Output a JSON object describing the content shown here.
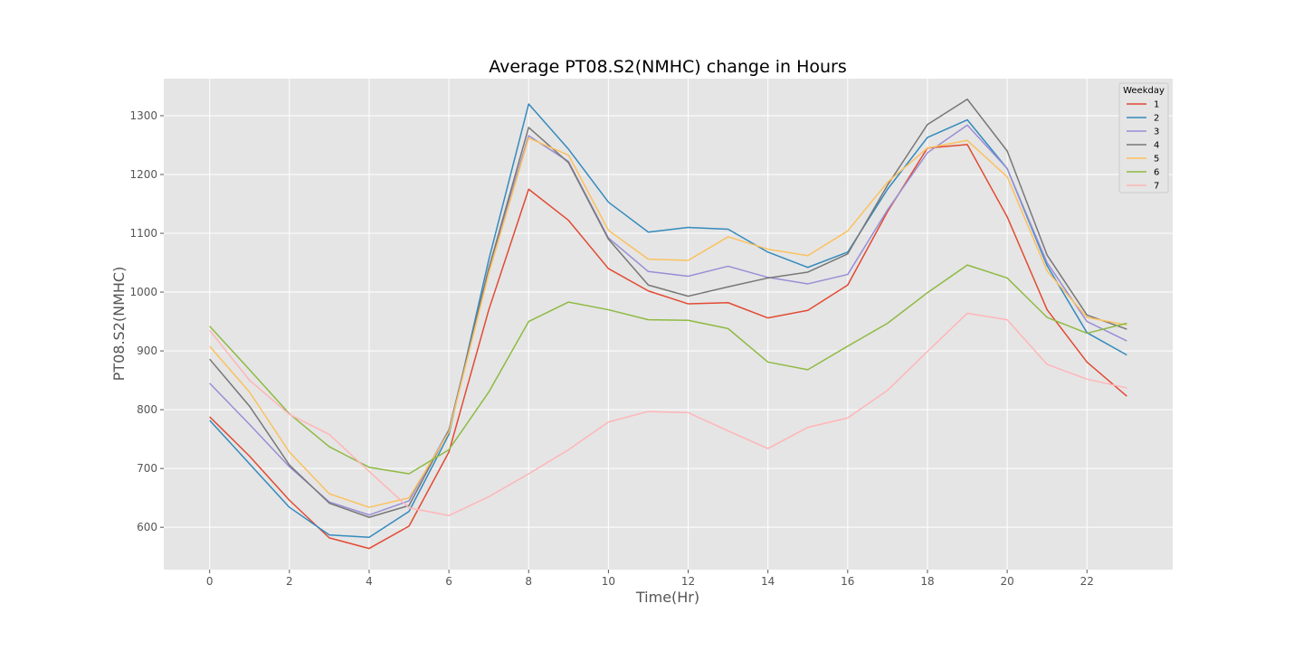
{
  "chart_data": {
    "type": "line",
    "title": "Average PT08.S2(NMHC) change in Hours",
    "xlabel": "Time(Hr)",
    "ylabel": "PT08.S2(NMHC)",
    "xlim": [
      -1.15,
      24.15
    ],
    "ylim": [
      528,
      1363
    ],
    "xticks": [
      0,
      2,
      4,
      6,
      8,
      10,
      12,
      14,
      16,
      18,
      20,
      22
    ],
    "yticks": [
      600,
      700,
      800,
      900,
      1000,
      1100,
      1200,
      1300
    ],
    "grid": true,
    "legend": {
      "title": "Weekday",
      "position": "top-right"
    },
    "x": [
      0,
      1,
      2,
      3,
      4,
      5,
      6,
      7,
      8,
      9,
      10,
      11,
      12,
      13,
      14,
      15,
      16,
      17,
      18,
      19,
      20,
      21,
      22,
      23
    ],
    "series": [
      {
        "name": "1",
        "color": "#E24A33",
        "values": [
          788,
          721,
          646,
          582,
          564,
          602,
          728,
          970,
          1175,
          1122,
          1040,
          1002,
          980,
          982,
          956,
          969,
          1012,
          1137,
          1245,
          1251,
          1128,
          970,
          881,
          823
        ]
      },
      {
        "name": "2",
        "color": "#348ABD",
        "values": [
          782,
          708,
          634,
          587,
          583,
          627,
          758,
          1055,
          1320,
          1243,
          1153,
          1102,
          1110,
          1107,
          1068,
          1042,
          1068,
          1175,
          1263,
          1293,
          1210,
          1045,
          931,
          893
        ]
      },
      {
        "name": "3",
        "color": "#988ED5",
        "values": [
          845,
          775,
          703,
          643,
          621,
          645,
          766,
          1040,
          1266,
          1222,
          1092,
          1035,
          1027,
          1044,
          1025,
          1014,
          1030,
          1140,
          1237,
          1284,
          1210,
          1050,
          950,
          917
        ]
      },
      {
        "name": "4",
        "color": "#777777",
        "values": [
          886,
          806,
          706,
          641,
          617,
          637,
          765,
          1040,
          1280,
          1220,
          1090,
          1012,
          993,
          1009,
          1024,
          1034,
          1065,
          1182,
          1285,
          1328,
          1240,
          1063,
          961,
          937
        ]
      },
      {
        "name": "5",
        "color": "#FBC15E",
        "values": [
          908,
          830,
          728,
          657,
          634,
          650,
          762,
          1032,
          1262,
          1233,
          1105,
          1056,
          1054,
          1094,
          1073,
          1062,
          1104,
          1187,
          1245,
          1258,
          1196,
          1036,
          957,
          944
        ]
      },
      {
        "name": "6",
        "color": "#8EBA42",
        "values": [
          942,
          868,
          793,
          737,
          702,
          691,
          732,
          830,
          950,
          983,
          970,
          953,
          952,
          938,
          881,
          868,
          908,
          947,
          999,
          1046,
          1024,
          957,
          930,
          947
        ]
      },
      {
        "name": "7",
        "color": "#FFB5B8",
        "values": [
          935,
          850,
          792,
          758,
          695,
          633,
          620,
          652,
          691,
          732,
          779,
          797,
          795,
          764,
          734,
          770,
          786,
          833,
          899,
          964,
          953,
          877,
          852,
          837
        ]
      }
    ]
  },
  "colors": {
    "plot_background": "#E5E5E5",
    "grid": "#FFFFFF"
  }
}
